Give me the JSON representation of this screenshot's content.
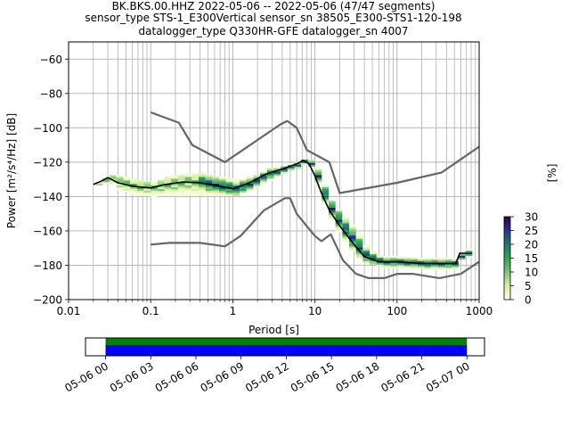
{
  "header": {
    "line1": "BK.BKS.00.HHZ   2022-05-06 -- 2022-05-06  (47/47 segments)",
    "line2": "sensor_type STS-1_E300Vertical sensor_sn 38505_E300-STS1-120-198",
    "line3": "datalogger_type Q330HR-GFE datalogger_sn 4007"
  },
  "chart_data": [
    {
      "type": "heatmap",
      "xlabel": "Period [s]",
      "ylabel": "Power [m²/s⁴/Hz] [dB]",
      "xscale": "log",
      "xlim": [
        0.01,
        1000
      ],
      "ylim": [
        -200,
        -50
      ],
      "grid": true,
      "xticks": [
        {
          "v": 0.01,
          "label": "0.01"
        },
        {
          "v": 0.1,
          "label": "0.1"
        },
        {
          "v": 1,
          "label": "1"
        },
        {
          "v": 10,
          "label": "10"
        },
        {
          "v": 100,
          "label": "100"
        },
        {
          "v": 1000,
          "label": "1000"
        }
      ],
      "yticks": [
        {
          "v": -60,
          "label": "−60"
        },
        {
          "v": -80,
          "label": "−80"
        },
        {
          "v": -100,
          "label": "−100"
        },
        {
          "v": -120,
          "label": "−120"
        },
        {
          "v": -140,
          "label": "−140"
        },
        {
          "v": -160,
          "label": "−160"
        },
        {
          "v": -180,
          "label": "−180"
        },
        {
          "v": -200,
          "label": "−200"
        }
      ],
      "colorbar": {
        "label": "[%]",
        "range": [
          0,
          30
        ],
        "ticks": [
          {
            "v": 0,
            "label": "0"
          },
          {
            "v": 5,
            "label": "5"
          },
          {
            "v": 10,
            "label": "10"
          },
          {
            "v": 15,
            "label": "15"
          },
          {
            "v": 20,
            "label": "20"
          },
          {
            "v": 25,
            "label": "25"
          },
          {
            "v": 30,
            "label": "30"
          }
        ],
        "colors": [
          "#ffffe5",
          "#d9f0a3",
          "#78c679",
          "#31a354",
          "#1d7a6e",
          "#253494",
          "#2d004b"
        ]
      },
      "noise_model_upper": {
        "x": [
          0.1,
          0.22,
          0.32,
          0.8,
          3.8,
          4.6,
          6,
          8,
          15,
          20,
          100,
          350,
          1000
        ],
        "y": [
          -91,
          -97,
          -110,
          -120,
          -98,
          -96,
          -100,
          -113,
          -120,
          -138,
          -132,
          -126,
          -111
        ]
      },
      "noise_model_lower": {
        "x": [
          0.1,
          0.17,
          0.4,
          0.8,
          1.24,
          2.4,
          4.3,
          5,
          6,
          10,
          12,
          15.6,
          21.9,
          31.6,
          45,
          70,
          101,
          154,
          328,
          600,
          1000
        ],
        "y": [
          -168,
          -167,
          -167,
          -169,
          -163,
          -148,
          -141,
          -141,
          -150,
          -163,
          -166,
          -162,
          -177,
          -185,
          -187.5,
          -187.5,
          -185,
          -185,
          -187.5,
          -185,
          -178
        ]
      },
      "mode_curve": {
        "x": [
          0.02,
          0.025,
          0.03,
          0.04,
          0.06,
          0.1,
          0.15,
          0.25,
          0.4,
          0.7,
          1,
          1.6,
          2.5,
          4,
          6,
          7.2,
          8.5,
          10,
          12,
          15,
          20,
          30,
          40,
          60,
          100,
          200,
          380,
          520,
          580,
          700
        ],
        "y": [
          -133,
          -131,
          -129,
          -132,
          -134,
          -135,
          -133,
          -131.5,
          -132,
          -134,
          -135.5,
          -132,
          -127,
          -124,
          -121,
          -119,
          -121,
          -128,
          -138,
          -148,
          -157,
          -168,
          -175,
          -178,
          -178,
          -179,
          -179,
          -179,
          -173,
          -173
        ]
      },
      "density_band": {
        "x": [
          0.02,
          0.025,
          0.03,
          0.04,
          0.06,
          0.1,
          0.15,
          0.25,
          0.4,
          0.7,
          1,
          1.6,
          2.5,
          4,
          6,
          7.2,
          8.5,
          10,
          12,
          15,
          20,
          30,
          40,
          60,
          100,
          200,
          380,
          520,
          580,
          700
        ],
        "upper": [
          -132,
          -130,
          -127,
          -128,
          -130,
          -132,
          -128,
          -127,
          -127,
          -129,
          -130,
          -128,
          -124,
          -122,
          -119,
          -118,
          -119,
          -124,
          -133,
          -143,
          -150,
          -160,
          -170,
          -175,
          -175,
          -176,
          -176,
          -176,
          -171,
          -171
        ],
        "lower": [
          -134,
          -133,
          -132,
          -137,
          -139,
          -140,
          -139,
          -139,
          -139,
          -139,
          -139,
          -136,
          -131,
          -126,
          -123,
          -121,
          -124,
          -133,
          -144,
          -155,
          -164,
          -175,
          -179,
          -181,
          -181,
          -182,
          -182,
          -182,
          -175,
          -175
        ]
      }
    },
    {
      "type": "timeline",
      "start": "2022-05-06 00:00",
      "end": "2022-05-07 00:00",
      "xlim": [
        "2022-05-05 22:40",
        "2022-05-07 01:10"
      ],
      "xticks": [
        {
          "v": "2022-05-06 00:00",
          "label": "05-06 00"
        },
        {
          "v": "2022-05-06 03:00",
          "label": "05-06 03"
        },
        {
          "v": "2022-05-06 06:00",
          "label": "05-06 06"
        },
        {
          "v": "2022-05-06 09:00",
          "label": "05-06 09"
        },
        {
          "v": "2022-05-06 12:00",
          "label": "05-06 12"
        },
        {
          "v": "2022-05-06 15:00",
          "label": "05-06 15"
        },
        {
          "v": "2022-05-06 18:00",
          "label": "05-06 18"
        },
        {
          "v": "2022-05-06 21:00",
          "label": "05-06 21"
        },
        {
          "v": "2022-05-07 00:00",
          "label": "05-07 00"
        }
      ],
      "colors": {
        "data": "#008000",
        "used": "#0000ff"
      }
    }
  ]
}
